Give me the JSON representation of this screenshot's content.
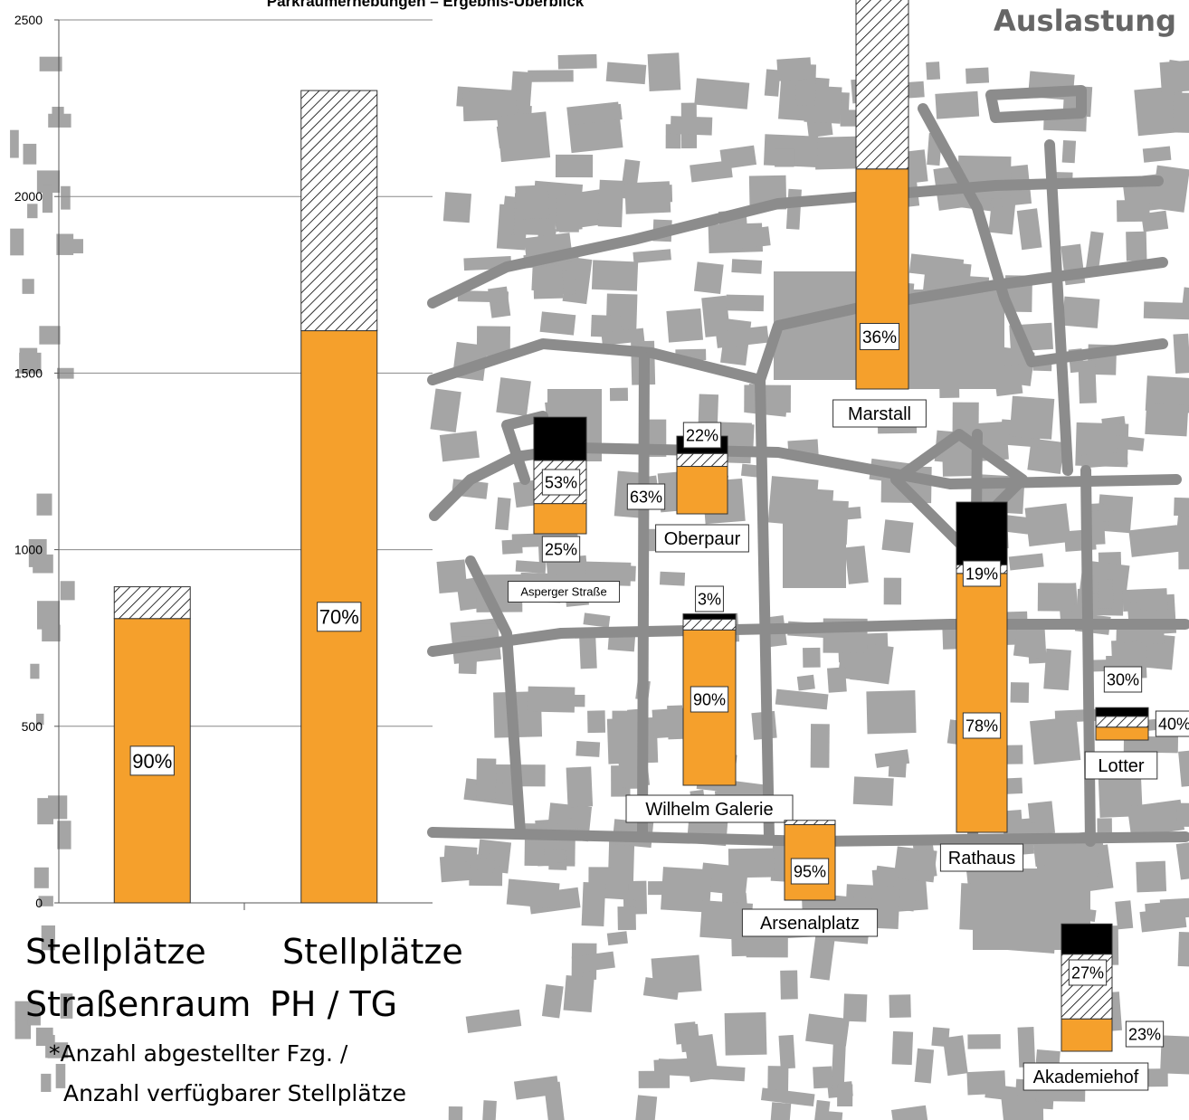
{
  "header": {
    "chart_title": "Parkraumerhebungen – Ergebnis-Überblick",
    "map_title": "Auslastung"
  },
  "captions": {
    "street_line1": "Stellplätze",
    "street_line2": "Straßenraum",
    "garage_line1": "Stellplätze",
    "garage_line2": "PH / TG"
  },
  "footnote": {
    "marker": "*",
    "line1": "Anzahl abgestellter Fzg. /",
    "line2": "Anzahl verfügbarer Stellplätze"
  },
  "colors": {
    "occupied": "#f5a02c",
    "black": "#000000",
    "map_building": "#a5a5a5",
    "map_street": "#8c8c8c",
    "grid": "#888888"
  },
  "chart_data": [
    {
      "type": "bar",
      "stacked": true,
      "title": "Parkraumerhebungen – Ergebnis-Überblick",
      "categories": [
        "Stellplätze Straßenraum",
        "Stellplätze PH / TG"
      ],
      "ylim": [
        0,
        2500
      ],
      "yticks": [
        "0",
        "500",
        "1000",
        "1500",
        "2000",
        "2500"
      ],
      "grid": true,
      "series": [
        {
          "name": "",
          "fill": "orange",
          "values": [
            805,
            1620
          ]
        },
        {
          "name": "",
          "fill": "hatch",
          "values": [
            90,
            680
          ]
        }
      ],
      "bar_labels": [
        "90%",
        "70%"
      ]
    },
    {
      "type": "bar",
      "stacked": true,
      "title": "Auslastung",
      "garages": [
        {
          "name": "Marstall",
          "orange": 510,
          "hatch": 690,
          "black": 0,
          "labels": [
            "36%"
          ]
        },
        {
          "name": "Oberpaur",
          "orange": 110,
          "hatch": 30,
          "black": 40,
          "labels": [
            "22%",
            "63%"
          ]
        },
        {
          "name": "Asperger Straße",
          "orange": 70,
          "hatch": 100,
          "black": 100,
          "labels": [
            "53%",
            "25%"
          ]
        },
        {
          "name": "Wilhelm Galerie",
          "orange": 360,
          "hatch": 25,
          "black": 12,
          "labels": [
            "3%",
            "90%"
          ]
        },
        {
          "name": "Rathaus",
          "orange": 600,
          "hatch": 20,
          "black": 145,
          "labels": [
            "19%",
            "78%"
          ]
        },
        {
          "name": "Lotter",
          "orange": 30,
          "hatch": 25,
          "black": 20,
          "labels": [
            "30%",
            "40%"
          ]
        },
        {
          "name": "Arsenalplatz",
          "orange": 175,
          "hatch": 10,
          "black": 0,
          "labels": [
            "95%"
          ]
        },
        {
          "name": "Akademiehof",
          "orange": 75,
          "hatch": 150,
          "black": 70,
          "labels": [
            "27%",
            "23%"
          ]
        }
      ]
    }
  ]
}
